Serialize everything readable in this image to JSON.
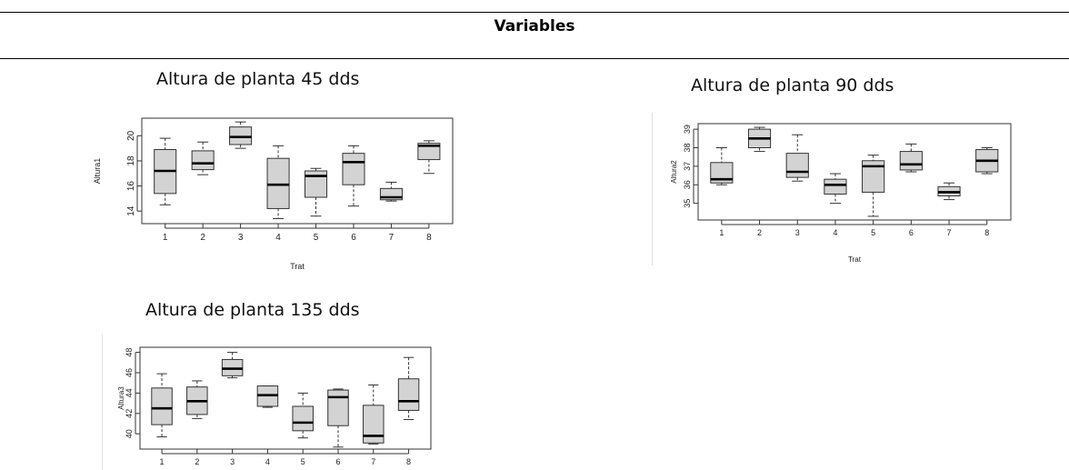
{
  "header": "Variables",
  "chart_data": [
    {
      "type": "box",
      "title": "Altura de planta 45 dds",
      "xlabel": "Trat",
      "ylabel": "Altura1",
      "categories": [
        "1",
        "2",
        "3",
        "4",
        "5",
        "6",
        "7",
        "8"
      ],
      "yticks": [
        14,
        16,
        18,
        20
      ],
      "ylim": [
        13.0,
        21.4
      ],
      "boxes": [
        {
          "min": 14.5,
          "q1": 15.4,
          "median": 17.2,
          "q3": 18.9,
          "max": 19.8
        },
        {
          "min": 16.9,
          "q1": 17.3,
          "median": 17.8,
          "q3": 18.8,
          "max": 19.5
        },
        {
          "min": 19.0,
          "q1": 19.3,
          "median": 19.9,
          "q3": 20.7,
          "max": 21.1
        },
        {
          "min": 13.4,
          "q1": 14.2,
          "median": 16.1,
          "q3": 18.2,
          "max": 19.2
        },
        {
          "min": 13.6,
          "q1": 15.1,
          "median": 16.8,
          "q3": 17.2,
          "max": 17.4
        },
        {
          "min": 14.4,
          "q1": 16.1,
          "median": 17.9,
          "q3": 18.6,
          "max": 19.2
        },
        {
          "min": 14.8,
          "q1": 14.9,
          "median": 15.1,
          "q3": 15.8,
          "max": 16.3
        },
        {
          "min": 17.0,
          "q1": 18.1,
          "median": 19.2,
          "q3": 19.4,
          "max": 19.6
        }
      ]
    },
    {
      "type": "box",
      "title": "Altura de planta 90 dds",
      "xlabel": "Trat",
      "ylabel": "Altura2",
      "categories": [
        "1",
        "2",
        "3",
        "4",
        "5",
        "6",
        "7",
        "8"
      ],
      "yticks": [
        35,
        36,
        37,
        38,
        39
      ],
      "ylim": [
        34.1,
        39.3
      ],
      "boxes": [
        {
          "min": 36.0,
          "q1": 36.1,
          "median": 36.3,
          "q3": 37.2,
          "max": 38.0
        },
        {
          "min": 37.8,
          "q1": 38.0,
          "median": 38.5,
          "q3": 39.0,
          "max": 39.1
        },
        {
          "min": 36.2,
          "q1": 36.4,
          "median": 36.7,
          "q3": 37.7,
          "max": 38.7
        },
        {
          "min": 35.0,
          "q1": 35.5,
          "median": 36.0,
          "q3": 36.3,
          "max": 36.6
        },
        {
          "min": 34.3,
          "q1": 35.6,
          "median": 37.0,
          "q3": 37.3,
          "max": 37.6
        },
        {
          "min": 36.7,
          "q1": 36.8,
          "median": 37.1,
          "q3": 37.8,
          "max": 38.2
        },
        {
          "min": 35.2,
          "q1": 35.4,
          "median": 35.6,
          "q3": 35.9,
          "max": 36.1
        },
        {
          "min": 36.6,
          "q1": 36.7,
          "median": 37.3,
          "q3": 37.9,
          "max": 38.0
        }
      ]
    },
    {
      "type": "box",
      "title": "Altura de planta 135 dds",
      "xlabel": "Trat",
      "ylabel": "Altura3",
      "categories": [
        "1",
        "2",
        "3",
        "4",
        "5",
        "6",
        "7",
        "8"
      ],
      "yticks": [
        40,
        42,
        44,
        46,
        48
      ],
      "ylim": [
        38.5,
        48.5
      ],
      "boxes": [
        {
          "min": 39.7,
          "q1": 40.9,
          "median": 42.5,
          "q3": 44.5,
          "max": 45.9
        },
        {
          "min": 41.5,
          "q1": 41.9,
          "median": 43.2,
          "q3": 44.6,
          "max": 45.2
        },
        {
          "min": 45.5,
          "q1": 45.7,
          "median": 46.4,
          "q3": 47.3,
          "max": 48.0
        },
        {
          "min": 42.6,
          "q1": 42.7,
          "median": 43.8,
          "q3": 44.7,
          "max": 44.7
        },
        {
          "min": 39.6,
          "q1": 40.3,
          "median": 41.1,
          "q3": 42.7,
          "max": 44.0
        },
        {
          "min": 38.7,
          "q1": 40.8,
          "median": 43.6,
          "q3": 44.3,
          "max": 44.4
        },
        {
          "min": 39.0,
          "q1": 39.1,
          "median": 39.8,
          "q3": 42.8,
          "max": 44.8
        },
        {
          "min": 41.4,
          "q1": 42.3,
          "median": 43.2,
          "q3": 45.4,
          "max": 47.5
        }
      ]
    }
  ]
}
